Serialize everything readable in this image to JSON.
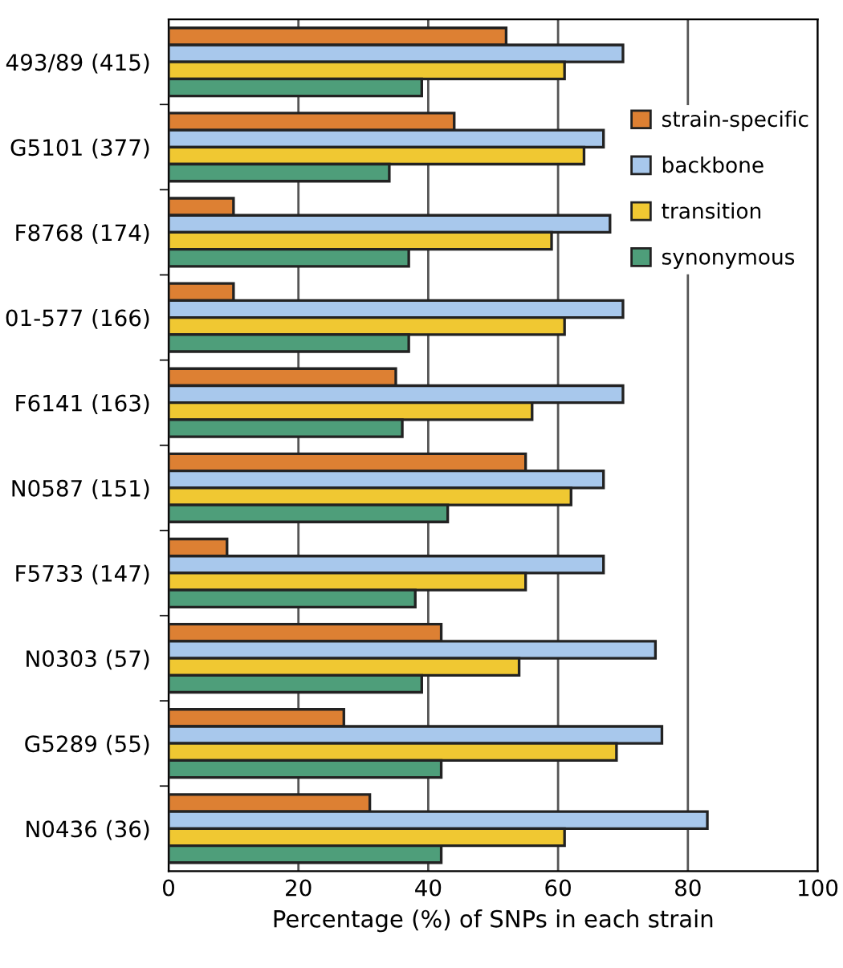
{
  "chart_data": {
    "type": "bar",
    "orientation": "horizontal",
    "xlabel": "Percentage (%) of SNPs in each strain",
    "categories": [
      "493/89 (415)",
      "G5101 (377)",
      "F8768 (174)",
      "01-577 (166)",
      "F6141 (163)",
      "N0587 (151)",
      "F5733 (147)",
      "N0303 (57)",
      "G5289 (55)",
      "N0436 (36)"
    ],
    "series": [
      {
        "name": "strain-specific",
        "color": "#dd8033",
        "values": [
          52,
          44,
          10,
          10,
          35,
          55,
          9,
          42,
          27,
          31
        ]
      },
      {
        "name": "backbone",
        "color": "#a8c8ec",
        "values": [
          70,
          67,
          68,
          70,
          70,
          67,
          67,
          75,
          76,
          83
        ]
      },
      {
        "name": "transition",
        "color": "#f0c832",
        "values": [
          61,
          64,
          59,
          61,
          56,
          62,
          55,
          54,
          69,
          61
        ]
      },
      {
        "name": "synonymous",
        "color": "#4e9e7a",
        "values": [
          39,
          34,
          37,
          37,
          36,
          43,
          38,
          39,
          42,
          42
        ]
      }
    ],
    "xlim": [
      0,
      100
    ],
    "xticks": [
      0,
      20,
      40,
      60,
      80,
      100
    ],
    "grid": "x",
    "legend": "right"
  }
}
